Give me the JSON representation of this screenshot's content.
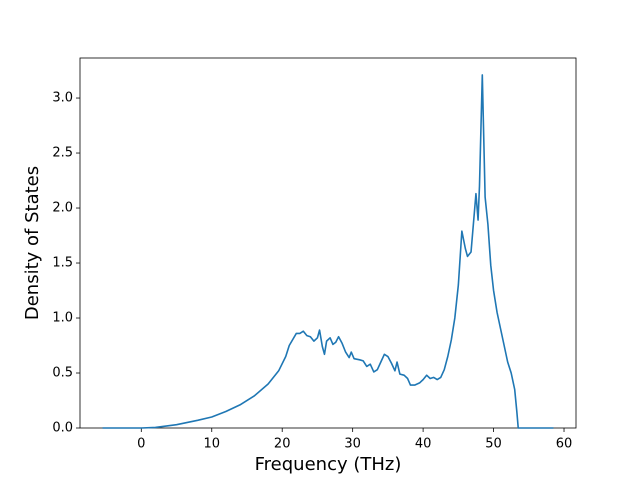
{
  "chart_data": {
    "type": "line",
    "xlabel": "Frequency (THz)",
    "ylabel": "Density of States",
    "color": "#1f77b4",
    "grid": false,
    "xlim": [
      -8.7,
      61.7
    ],
    "ylim": [
      0,
      3.364
    ],
    "xticks": [
      0,
      10,
      20,
      30,
      40,
      50,
      60
    ],
    "yticks": [
      {
        "value": 0,
        "label": "0.0"
      },
      0.5,
      {
        "value": 1,
        "label": "1.0"
      },
      1.5,
      {
        "value": 2,
        "label": "2.0"
      },
      2.5,
      {
        "value": 3,
        "label": "3.0"
      }
    ],
    "x": [
      -5.5,
      0,
      2,
      5,
      8,
      10,
      12,
      14,
      16,
      18,
      19.5,
      20.5,
      21,
      22,
      22.5,
      23,
      23.5,
      24,
      24.5,
      25,
      25.3,
      25.7,
      26,
      26.3,
      26.8,
      27.2,
      27.6,
      28,
      28.5,
      29,
      29.5,
      29.8,
      30.2,
      31,
      31.5,
      32,
      32.5,
      33,
      33.5,
      34,
      34.5,
      35,
      35.5,
      36,
      36.3,
      36.7,
      37.3,
      37.8,
      38.2,
      38.8,
      39.5,
      40,
      40.5,
      41,
      41.5,
      42,
      42.5,
      43,
      43.5,
      44,
      44.5,
      45,
      45.5,
      46,
      46.3,
      46.8,
      47.5,
      47.8,
      48,
      48.4,
      48.8,
      49.2,
      49.6,
      50,
      50.5,
      51,
      51.5,
      52,
      52.5,
      53,
      53.3,
      53.5,
      58.5
    ],
    "values": [
      0,
      0,
      0.005,
      0.03,
      0.07,
      0.1,
      0.15,
      0.21,
      0.29,
      0.4,
      0.52,
      0.65,
      0.75,
      0.86,
      0.86,
      0.88,
      0.84,
      0.83,
      0.79,
      0.82,
      0.89,
      0.74,
      0.67,
      0.79,
      0.82,
      0.76,
      0.78,
      0.83,
      0.77,
      0.69,
      0.64,
      0.69,
      0.63,
      0.62,
      0.61,
      0.56,
      0.58,
      0.51,
      0.53,
      0.6,
      0.67,
      0.65,
      0.59,
      0.52,
      0.6,
      0.49,
      0.48,
      0.45,
      0.39,
      0.39,
      0.41,
      0.44,
      0.48,
      0.45,
      0.46,
      0.44,
      0.46,
      0.53,
      0.65,
      0.8,
      1.0,
      1.3,
      1.79,
      1.63,
      1.56,
      1.6,
      2.13,
      1.89,
      2.2,
      3.21,
      2.1,
      1.85,
      1.48,
      1.25,
      1.05,
      0.9,
      0.75,
      0.6,
      0.5,
      0.35,
      0.15,
      0,
      0
    ]
  }
}
